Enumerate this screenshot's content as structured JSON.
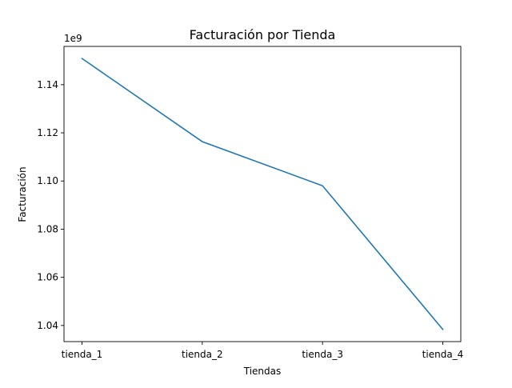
{
  "chart_data": {
    "type": "line",
    "title": "Facturación por Tienda",
    "xlabel": "Tiendas",
    "ylabel": "Facturación",
    "offset_label": "1e9",
    "categories": [
      "tienda_1",
      "tienda_2",
      "tienda_3",
      "tienda_4"
    ],
    "series": [
      {
        "values": [
          1150880000,
          1116344000,
          1098020000,
          1038376000
        ],
        "color": "#1f77b4"
      }
    ],
    "y_scale": 1000000000,
    "ylim": [
      1.0333,
      1.1559
    ],
    "yticks": [
      1.04,
      1.06,
      1.08,
      1.1,
      1.12,
      1.14
    ],
    "ytick_labels": [
      "1.04",
      "1.06",
      "1.08",
      "1.10",
      "1.12",
      "1.14"
    ],
    "grid": false,
    "legend": "none"
  }
}
